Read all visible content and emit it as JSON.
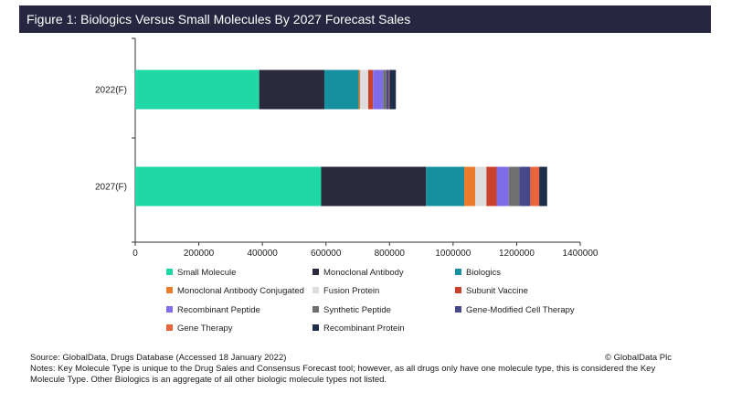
{
  "figure_title": "Figure 1: Biologics Versus Small Molecules By 2027 Forecast Sales",
  "source": "Source: GlobalData, Drugs Database (Accessed 18 January 2022)",
  "notes": "Notes: Key Molecule Type is unique to the Drug Sales and Consensus Forecast tool; however, as all drugs only have one molecule type, this is considered the Key Molecule Type. Other Biologics is an aggregate of all other biologic molecule types not listed.",
  "copyright": "© GlobalData Plc",
  "chart_data": {
    "type": "bar",
    "orientation": "horizontal",
    "stacked": true,
    "title": "",
    "xlabel": "",
    "ylabel": "",
    "categories": [
      "2022(F)",
      "2027(F)"
    ],
    "xlim": [
      0,
      1400000
    ],
    "xticks": [
      "0",
      "200000",
      "400000",
      "600000",
      "800000",
      "1000000",
      "1200000",
      "1400000"
    ],
    "grid": false,
    "legend_position": "bottom",
    "series": [
      {
        "name": "Small Molecule",
        "color": "#1fd8a6",
        "values": [
          390000,
          585000
        ]
      },
      {
        "name": "Monoclonal Antibody",
        "color": "#2a2a3e",
        "values": [
          205000,
          330000
        ]
      },
      {
        "name": "Biologics",
        "color": "#168f9e",
        "values": [
          108000,
          120000
        ]
      },
      {
        "name": "Monoclonal Antibody Conjugated",
        "color": "#ea7d2c",
        "values": [
          5000,
          35000
        ]
      },
      {
        "name": "Fusion Protein",
        "color": "#dddddd",
        "values": [
          25000,
          35000
        ]
      },
      {
        "name": "Subunit Vaccine",
        "color": "#c9402b",
        "values": [
          15000,
          32000
        ]
      },
      {
        "name": "Recombinant Peptide",
        "color": "#7f6ce8",
        "values": [
          32000,
          38000
        ]
      },
      {
        "name": "Synthetic Peptide",
        "color": "#707070",
        "values": [
          10000,
          33000
        ]
      },
      {
        "name": "Gene-Modified Cell Therapy",
        "color": "#46488a",
        "values": [
          8000,
          35000
        ]
      },
      {
        "name": "Gene Therapy",
        "color": "#e8643c",
        "values": [
          2000,
          28000
        ]
      },
      {
        "name": "Recombinant Protein",
        "color": "#1e2e4a",
        "values": [
          20000,
          25000
        ]
      }
    ]
  }
}
